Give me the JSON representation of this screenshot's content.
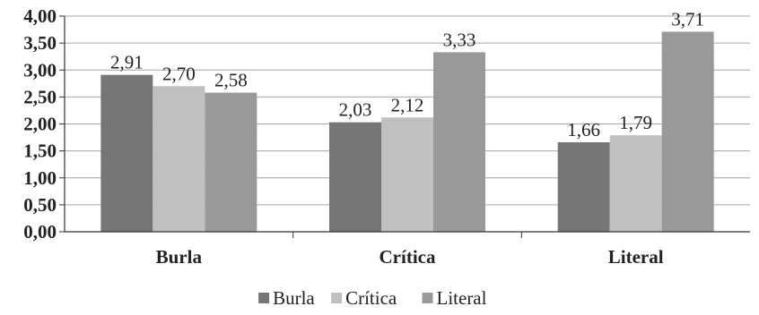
{
  "chart_data": {
    "type": "bar",
    "categories": [
      "Burla",
      "Crítica",
      "Literal"
    ],
    "series": [
      {
        "name": "Burla",
        "values": [
          2.91,
          2.03,
          1.66
        ],
        "labels": [
          "2,91",
          "2,03",
          "1,66"
        ],
        "color": "#767676"
      },
      {
        "name": "Crítica",
        "values": [
          2.7,
          2.12,
          1.79
        ],
        "labels": [
          "2,70",
          "2,12",
          "1,79"
        ],
        "color": "#c0c0c0"
      },
      {
        "name": "Literal",
        "values": [
          2.58,
          3.33,
          3.71
        ],
        "labels": [
          "2,58",
          "3,33",
          "3,71"
        ],
        "color": "#999999"
      }
    ],
    "ylim": [
      0,
      4
    ],
    "yticks": [
      0,
      0.5,
      1,
      1.5,
      2,
      2.5,
      3,
      3.5,
      4
    ],
    "ytick_labels": [
      "0,00",
      "0,50",
      "1,00",
      "1,50",
      "2,00",
      "2,50",
      "3,00",
      "3,50",
      "4,00"
    ],
    "grid": true,
    "legend": "bottom",
    "title": "",
    "xlabel": "",
    "ylabel": ""
  }
}
